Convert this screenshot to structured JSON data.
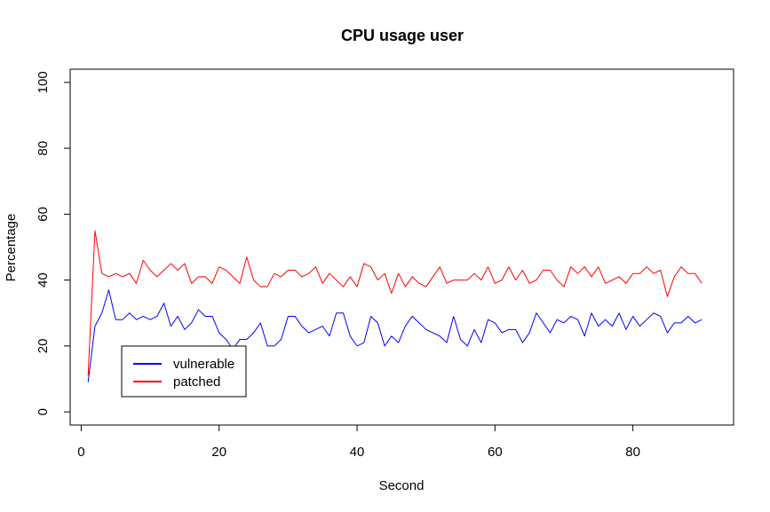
{
  "chart_data": {
    "type": "line",
    "title": "CPU usage user",
    "xlabel": "Second",
    "ylabel": "Percentage",
    "xlim": [
      -1.6,
      94.6
    ],
    "ylim": [
      -4,
      104
    ],
    "xticks": [
      0,
      20,
      40,
      60,
      80
    ],
    "yticks": [
      0,
      20,
      40,
      60,
      80,
      100
    ],
    "grid": false,
    "legend_position": "bottom-left",
    "series": [
      {
        "name": "vulnerable",
        "color": "#0000ff",
        "x": [
          1,
          2,
          3,
          4,
          5,
          6,
          7,
          8,
          9,
          10,
          11,
          12,
          13,
          14,
          15,
          16,
          17,
          18,
          19,
          20,
          21,
          22,
          23,
          24,
          25,
          26,
          27,
          28,
          29,
          30,
          31,
          32,
          33,
          34,
          35,
          36,
          37,
          38,
          39,
          40,
          41,
          42,
          43,
          44,
          45,
          46,
          47,
          48,
          49,
          50,
          51,
          52,
          53,
          54,
          55,
          56,
          57,
          58,
          59,
          60,
          61,
          62,
          63,
          64,
          65,
          66,
          67,
          68,
          69,
          70,
          71,
          72,
          73,
          74,
          75,
          76,
          77,
          78,
          79,
          80,
          81,
          82,
          83,
          84,
          85,
          86,
          87,
          88,
          89,
          90
        ],
        "values": [
          9,
          26,
          30,
          37,
          28,
          28,
          30,
          28,
          29,
          28,
          29,
          33,
          26,
          29,
          25,
          27,
          31,
          29,
          29,
          24,
          22,
          19,
          22,
          22,
          24,
          27,
          20,
          20,
          22,
          29,
          29,
          26,
          24,
          25,
          26,
          23,
          30,
          30,
          23,
          20,
          21,
          29,
          27,
          20,
          23,
          21,
          26,
          29,
          27,
          25,
          24,
          23,
          21,
          29,
          22,
          20,
          25,
          21,
          28,
          27,
          24,
          25,
          25,
          21,
          24,
          30,
          27,
          24,
          28,
          27,
          29,
          28,
          23,
          30,
          26,
          28,
          26,
          30,
          25,
          29,
          26,
          28,
          30,
          29,
          24,
          27,
          27,
          29,
          27,
          28
        ]
      },
      {
        "name": "patched",
        "color": "#ff0000",
        "x": [
          1,
          2,
          3,
          4,
          5,
          6,
          7,
          8,
          9,
          10,
          11,
          12,
          13,
          14,
          15,
          16,
          17,
          18,
          19,
          20,
          21,
          22,
          23,
          24,
          25,
          26,
          27,
          28,
          29,
          30,
          31,
          32,
          33,
          34,
          35,
          36,
          37,
          38,
          39,
          40,
          41,
          42,
          43,
          44,
          45,
          46,
          47,
          48,
          49,
          50,
          51,
          52,
          53,
          54,
          55,
          56,
          57,
          58,
          59,
          60,
          61,
          62,
          63,
          64,
          65,
          66,
          67,
          68,
          69,
          70,
          71,
          72,
          73,
          74,
          75,
          76,
          77,
          78,
          79,
          80,
          81,
          82,
          83,
          84,
          85,
          86,
          87,
          88,
          89,
          90
        ],
        "values": [
          11,
          55,
          42,
          41,
          42,
          41,
          42,
          39,
          46,
          43,
          41,
          43,
          45,
          43,
          45,
          39,
          41,
          41,
          39,
          44,
          43,
          41,
          39,
          47,
          40,
          38,
          38,
          42,
          41,
          43,
          43,
          41,
          42,
          44,
          39,
          42,
          40,
          38,
          41,
          38,
          45,
          44,
          40,
          42,
          36,
          42,
          38,
          41,
          39,
          38,
          41,
          44,
          39,
          40,
          40,
          40,
          42,
          40,
          44,
          39,
          40,
          44,
          40,
          43,
          39,
          40,
          43,
          43,
          40,
          38,
          44,
          42,
          44,
          41,
          44,
          39,
          40,
          41,
          39,
          42,
          42,
          44,
          42,
          43,
          35,
          41,
          44,
          42,
          42,
          39
        ]
      }
    ]
  }
}
